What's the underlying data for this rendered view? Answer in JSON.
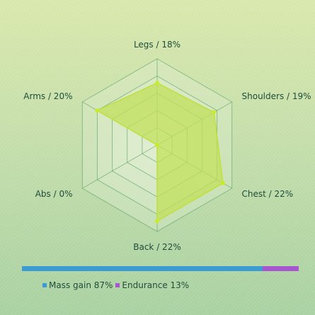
{
  "chart_data": {
    "type": "radar",
    "axes": [
      {
        "label": "Legs / 18%",
        "value": 18
      },
      {
        "label": "Shoulders / 19%",
        "value": 19
      },
      {
        "label": "Chest / 22%",
        "value": 22
      },
      {
        "label": "Back / 22%",
        "value": 22
      },
      {
        "label": "Abs / 0%",
        "value": 0
      },
      {
        "label": "Arms / 20%",
        "value": 20
      }
    ],
    "rmax": 25,
    "rings": 5,
    "colors": {
      "fill": "#c2e05a",
      "stroke": "#bfe03c",
      "point": "#c8ec2c",
      "grid": "#4f9a5c",
      "ring_bg": "#e4efd8"
    }
  },
  "split_bar": {
    "segments": [
      {
        "label": "Mass gain 87%",
        "value": 87,
        "color": "#3d9bd4"
      },
      {
        "label": "Endurance 13%",
        "value": 13,
        "color": "#a855d0"
      }
    ]
  }
}
